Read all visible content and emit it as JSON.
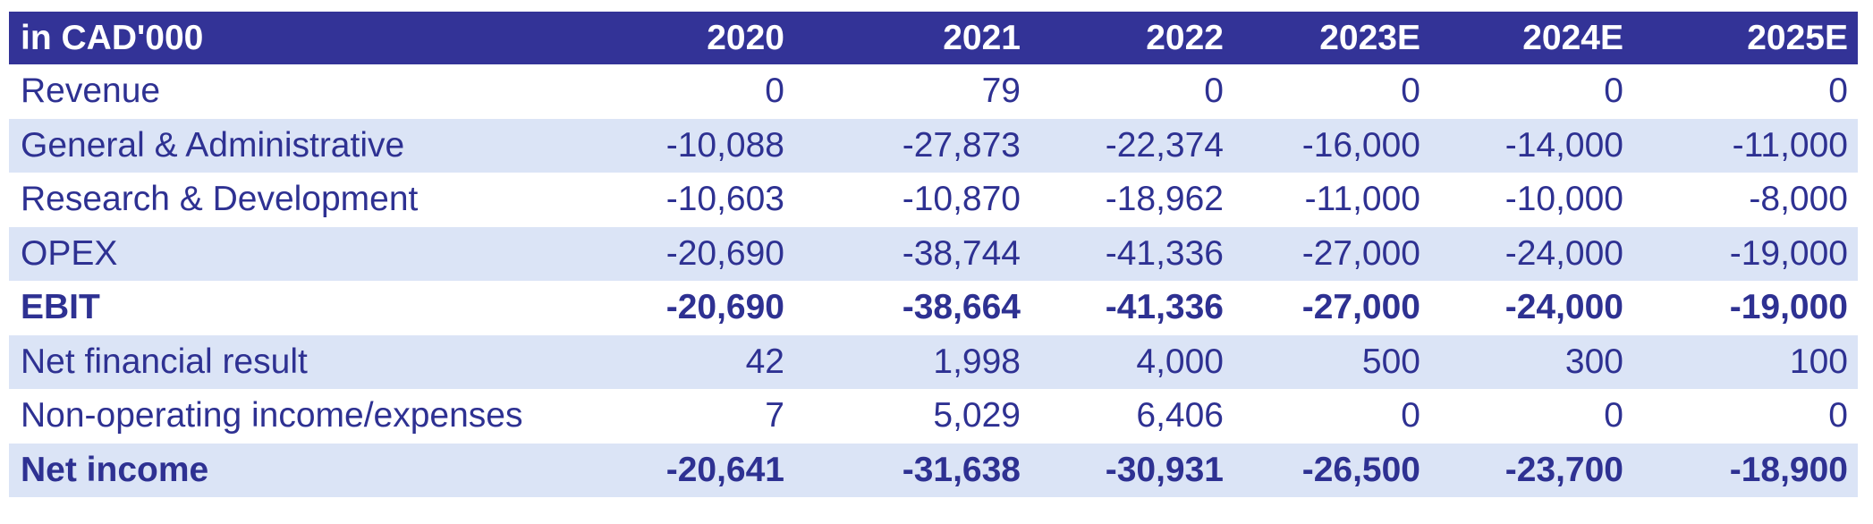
{
  "table": {
    "unit_label": "in CAD'000",
    "columns": [
      "2020",
      "2021",
      "2022",
      "2023E",
      "2024E",
      "2025E"
    ],
    "rows": [
      {
        "label": "Revenue",
        "values": [
          "0",
          "79",
          "0",
          "0",
          "0",
          "0"
        ],
        "bold": false,
        "shaded": false
      },
      {
        "label": "General & Administrative",
        "values": [
          "-10,088",
          "-27,873",
          "-22,374",
          "-16,000",
          "-14,000",
          "-11,000"
        ],
        "bold": false,
        "shaded": true
      },
      {
        "label": "Research & Development",
        "values": [
          "-10,603",
          "-10,870",
          "-18,962",
          "-11,000",
          "-10,000",
          "-8,000"
        ],
        "bold": false,
        "shaded": false
      },
      {
        "label": "OPEX",
        "values": [
          "-20,690",
          "-38,744",
          "-41,336",
          "-27,000",
          "-24,000",
          "-19,000"
        ],
        "bold": false,
        "shaded": true
      },
      {
        "label": "EBIT",
        "values": [
          "-20,690",
          "-38,664",
          "-41,336",
          "-27,000",
          "-24,000",
          "-19,000"
        ],
        "bold": true,
        "shaded": false
      },
      {
        "label": "Net financial result",
        "values": [
          "42",
          "1,998",
          "4,000",
          "500",
          "300",
          "100"
        ],
        "bold": false,
        "shaded": true
      },
      {
        "label": "Non-operating income/expenses",
        "values": [
          "7",
          "5,029",
          "6,406",
          "0",
          "0",
          "0"
        ],
        "bold": false,
        "shaded": false
      },
      {
        "label": "Net income",
        "values": [
          "-20,641",
          "-31,638",
          "-30,931",
          "-26,500",
          "-23,700",
          "-18,900"
        ],
        "bold": true,
        "shaded": true
      }
    ]
  },
  "colors": {
    "header_bg": "#333397",
    "header_text": "#FFFFFF",
    "body_text": "#2E3192",
    "band_bg": "#DBE4F6",
    "page_bg": "#FFFFFF"
  }
}
